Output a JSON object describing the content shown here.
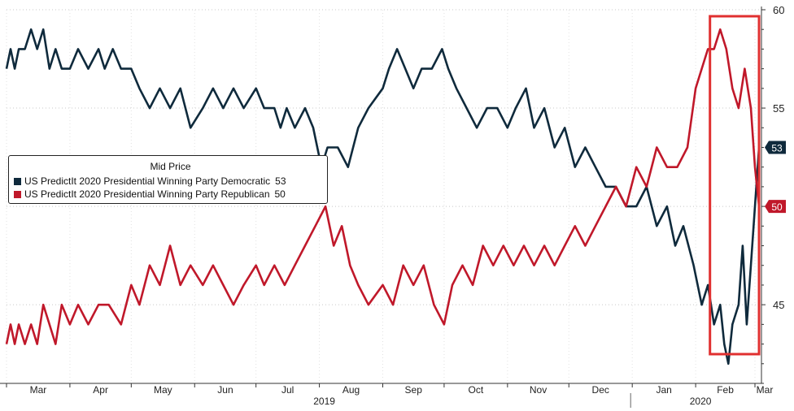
{
  "chart_data": {
    "type": "line",
    "title": "",
    "xlabel": "",
    "ylabel": "",
    "ylim": [
      41,
      60
    ],
    "yticks": [
      45,
      50,
      55,
      60
    ],
    "month_labels": [
      "Mar",
      "Apr",
      "May",
      "Jun",
      "Jul",
      "Aug",
      "Sep",
      "Oct",
      "Nov",
      "Dec",
      "Jan",
      "Feb",
      "Mar"
    ],
    "year_labels": [
      {
        "label": "2019",
        "month_index": 5
      },
      {
        "label": "2020",
        "month_index": 11
      }
    ],
    "x_start": "2019-03-01",
    "x_end": "2020-03-01",
    "highlight_box": {
      "x_from": "2020-02-08",
      "x_to": "2020-03-03",
      "color": "#e03030"
    },
    "legend": {
      "title": "Mid Price",
      "position": "left-middle"
    },
    "series": [
      {
        "name": "US PredictIt 2020 Presidential Winning Party Democratic",
        "color": "#0f2a3c",
        "last_value": 53,
        "points": [
          [
            "2019-03-01",
            57
          ],
          [
            "2019-03-03",
            58
          ],
          [
            "2019-03-05",
            57
          ],
          [
            "2019-03-07",
            58
          ],
          [
            "2019-03-10",
            58
          ],
          [
            "2019-03-13",
            59
          ],
          [
            "2019-03-16",
            58
          ],
          [
            "2019-03-19",
            59
          ],
          [
            "2019-03-22",
            57
          ],
          [
            "2019-03-25",
            58
          ],
          [
            "2019-03-28",
            57
          ],
          [
            "2019-04-01",
            57
          ],
          [
            "2019-04-05",
            58
          ],
          [
            "2019-04-10",
            57
          ],
          [
            "2019-04-15",
            58
          ],
          [
            "2019-04-18",
            57
          ],
          [
            "2019-04-22",
            58
          ],
          [
            "2019-04-26",
            57
          ],
          [
            "2019-05-01",
            57
          ],
          [
            "2019-05-05",
            56
          ],
          [
            "2019-05-10",
            55
          ],
          [
            "2019-05-15",
            56
          ],
          [
            "2019-05-20",
            55
          ],
          [
            "2019-05-25",
            56
          ],
          [
            "2019-05-30",
            54
          ],
          [
            "2019-06-05",
            55
          ],
          [
            "2019-06-10",
            56
          ],
          [
            "2019-06-15",
            55
          ],
          [
            "2019-06-20",
            56
          ],
          [
            "2019-06-25",
            55
          ],
          [
            "2019-07-01",
            56
          ],
          [
            "2019-07-05",
            55
          ],
          [
            "2019-07-10",
            55
          ],
          [
            "2019-07-13",
            54
          ],
          [
            "2019-07-16",
            55
          ],
          [
            "2019-07-20",
            54
          ],
          [
            "2019-07-25",
            55
          ],
          [
            "2019-07-29",
            54
          ],
          [
            "2019-08-02",
            52
          ],
          [
            "2019-08-05",
            53
          ],
          [
            "2019-08-10",
            53
          ],
          [
            "2019-08-15",
            52
          ],
          [
            "2019-08-20",
            54
          ],
          [
            "2019-08-25",
            55
          ],
          [
            "2019-09-01",
            56
          ],
          [
            "2019-09-04",
            57
          ],
          [
            "2019-09-08",
            58
          ],
          [
            "2019-09-12",
            57
          ],
          [
            "2019-09-16",
            56
          ],
          [
            "2019-09-20",
            57
          ],
          [
            "2019-09-25",
            57
          ],
          [
            "2019-09-30",
            58
          ],
          [
            "2019-10-03",
            57
          ],
          [
            "2019-10-07",
            56
          ],
          [
            "2019-10-12",
            55
          ],
          [
            "2019-10-17",
            54
          ],
          [
            "2019-10-22",
            55
          ],
          [
            "2019-10-27",
            55
          ],
          [
            "2019-11-01",
            54
          ],
          [
            "2019-11-05",
            55
          ],
          [
            "2019-11-10",
            56
          ],
          [
            "2019-11-14",
            54
          ],
          [
            "2019-11-19",
            55
          ],
          [
            "2019-11-24",
            53
          ],
          [
            "2019-11-29",
            54
          ],
          [
            "2019-12-04",
            52
          ],
          [
            "2019-12-09",
            53
          ],
          [
            "2019-12-14",
            52
          ],
          [
            "2019-12-19",
            51
          ],
          [
            "2019-12-24",
            51
          ],
          [
            "2019-12-29",
            50
          ],
          [
            "2020-01-03",
            50
          ],
          [
            "2020-01-08",
            51
          ],
          [
            "2020-01-13",
            49
          ],
          [
            "2020-01-18",
            50
          ],
          [
            "2020-01-22",
            48
          ],
          [
            "2020-01-26",
            49
          ],
          [
            "2020-01-31",
            47
          ],
          [
            "2020-02-04",
            45
          ],
          [
            "2020-02-07",
            46
          ],
          [
            "2020-02-10",
            44
          ],
          [
            "2020-02-13",
            45
          ],
          [
            "2020-02-15",
            43
          ],
          [
            "2020-02-17",
            42
          ],
          [
            "2020-02-19",
            44
          ],
          [
            "2020-02-22",
            45
          ],
          [
            "2020-02-24",
            48
          ],
          [
            "2020-02-26",
            44
          ],
          [
            "2020-02-28",
            47
          ],
          [
            "2020-03-01",
            50
          ],
          [
            "2020-03-03",
            53
          ]
        ]
      },
      {
        "name": "US PredictIt 2020 Presidential Winning Party Republican",
        "color": "#c0182a",
        "last_value": 50,
        "points": [
          [
            "2019-03-01",
            43
          ],
          [
            "2019-03-03",
            44
          ],
          [
            "2019-03-05",
            43
          ],
          [
            "2019-03-07",
            44
          ],
          [
            "2019-03-10",
            43
          ],
          [
            "2019-03-13",
            44
          ],
          [
            "2019-03-16",
            43
          ],
          [
            "2019-03-19",
            45
          ],
          [
            "2019-03-22",
            44
          ],
          [
            "2019-03-25",
            43
          ],
          [
            "2019-03-28",
            45
          ],
          [
            "2019-04-01",
            44
          ],
          [
            "2019-04-05",
            45
          ],
          [
            "2019-04-10",
            44
          ],
          [
            "2019-04-15",
            45
          ],
          [
            "2019-04-20",
            45
          ],
          [
            "2019-04-26",
            44
          ],
          [
            "2019-05-01",
            46
          ],
          [
            "2019-05-05",
            45
          ],
          [
            "2019-05-10",
            47
          ],
          [
            "2019-05-15",
            46
          ],
          [
            "2019-05-20",
            48
          ],
          [
            "2019-05-25",
            46
          ],
          [
            "2019-05-30",
            47
          ],
          [
            "2019-06-05",
            46
          ],
          [
            "2019-06-10",
            47
          ],
          [
            "2019-06-15",
            46
          ],
          [
            "2019-06-20",
            45
          ],
          [
            "2019-06-25",
            46
          ],
          [
            "2019-07-01",
            47
          ],
          [
            "2019-07-05",
            46
          ],
          [
            "2019-07-10",
            47
          ],
          [
            "2019-07-15",
            46
          ],
          [
            "2019-07-20",
            47
          ],
          [
            "2019-07-25",
            48
          ],
          [
            "2019-07-30",
            49
          ],
          [
            "2019-08-04",
            50
          ],
          [
            "2019-08-08",
            48
          ],
          [
            "2019-08-12",
            49
          ],
          [
            "2019-08-16",
            47
          ],
          [
            "2019-08-20",
            46
          ],
          [
            "2019-08-25",
            45
          ],
          [
            "2019-09-01",
            46
          ],
          [
            "2019-09-06",
            45
          ],
          [
            "2019-09-11",
            47
          ],
          [
            "2019-09-16",
            46
          ],
          [
            "2019-09-21",
            47
          ],
          [
            "2019-09-26",
            45
          ],
          [
            "2019-10-01",
            44
          ],
          [
            "2019-10-05",
            46
          ],
          [
            "2019-10-10",
            47
          ],
          [
            "2019-10-15",
            46
          ],
          [
            "2019-10-20",
            48
          ],
          [
            "2019-10-25",
            47
          ],
          [
            "2019-10-30",
            48
          ],
          [
            "2019-11-04",
            47
          ],
          [
            "2019-11-09",
            48
          ],
          [
            "2019-11-14",
            47
          ],
          [
            "2019-11-19",
            48
          ],
          [
            "2019-11-24",
            47
          ],
          [
            "2019-11-29",
            48
          ],
          [
            "2019-12-04",
            49
          ],
          [
            "2019-12-09",
            48
          ],
          [
            "2019-12-14",
            49
          ],
          [
            "2019-12-19",
            50
          ],
          [
            "2019-12-24",
            51
          ],
          [
            "2019-12-29",
            50
          ],
          [
            "2020-01-03",
            52
          ],
          [
            "2020-01-08",
            51
          ],
          [
            "2020-01-13",
            53
          ],
          [
            "2020-01-18",
            52
          ],
          [
            "2020-01-23",
            52
          ],
          [
            "2020-01-28",
            53
          ],
          [
            "2020-02-01",
            56
          ],
          [
            "2020-02-04",
            57
          ],
          [
            "2020-02-07",
            58
          ],
          [
            "2020-02-10",
            58
          ],
          [
            "2020-02-13",
            59
          ],
          [
            "2020-02-16",
            58
          ],
          [
            "2020-02-19",
            56
          ],
          [
            "2020-02-22",
            55
          ],
          [
            "2020-02-25",
            57
          ],
          [
            "2020-02-28",
            55
          ],
          [
            "2020-03-01",
            52
          ],
          [
            "2020-03-03",
            50
          ]
        ]
      }
    ]
  }
}
